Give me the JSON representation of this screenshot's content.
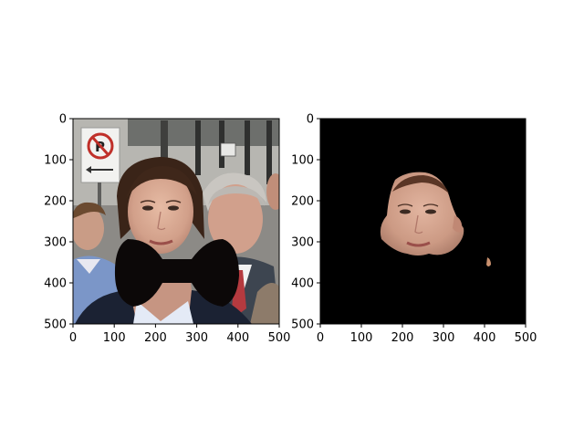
{
  "chart_data": [
    {
      "type": "image",
      "image_description": "Photo of a woman with dark hair in the center, a black bow-tie shape overlaid across her chin/neck area; a man with grey hair on the right, a man at left edge, a no-parking sign in the upper left, building columns in the background.",
      "xlim": [
        0,
        500
      ],
      "ylim": [
        500,
        0
      ],
      "xticks": [
        0,
        100,
        200,
        300,
        400,
        500
      ],
      "yticks": [
        0,
        100,
        200,
        300,
        400,
        500
      ],
      "xtick_labels": [
        "0",
        "100",
        "200",
        "300",
        "400",
        "500"
      ],
      "ytick_labels": [
        "0",
        "100",
        "200",
        "300",
        "400",
        "500"
      ]
    },
    {
      "type": "image",
      "image_description": "Black background with only the woman's face segmented and visible (face mask), plus a tiny speck of skin color near the lower right.",
      "xlim": [
        0,
        500
      ],
      "ylim": [
        500,
        0
      ],
      "xticks": [
        0,
        100,
        200,
        300,
        400,
        500
      ],
      "yticks": [
        0,
        100,
        200,
        300,
        400,
        500
      ],
      "xtick_labels": [
        "0",
        "100",
        "200",
        "300",
        "400",
        "500"
      ],
      "ytick_labels": [
        "0",
        "100",
        "200",
        "300",
        "400",
        "500"
      ]
    }
  ],
  "colors": {
    "background": "#ffffff",
    "mask_background": "#000000",
    "skin": "#d4a58e",
    "hair": "#3a2418",
    "bow": "#0c0808"
  }
}
